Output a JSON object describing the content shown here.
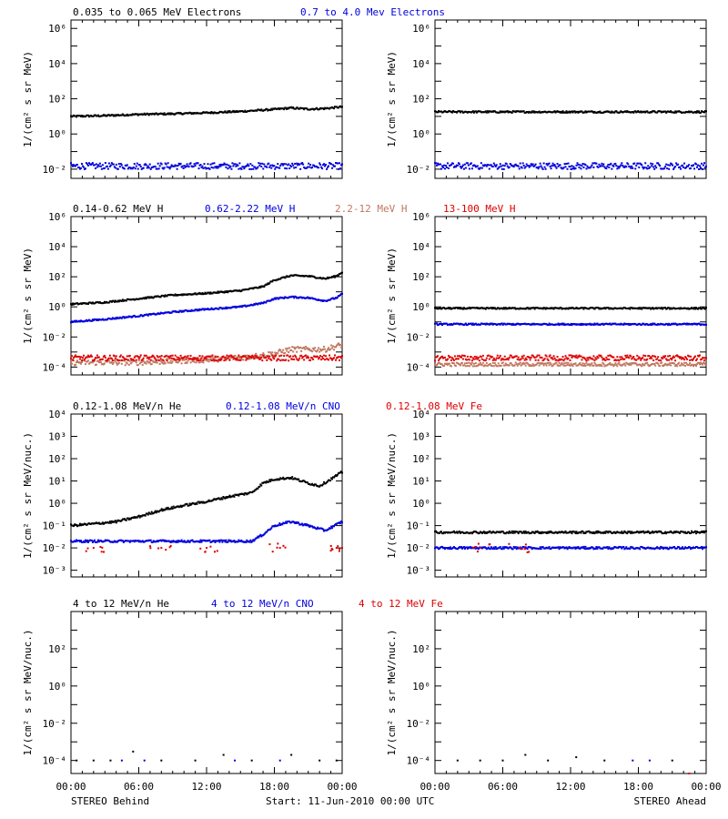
{
  "colors": {
    "axis": "#000000",
    "black_series": "#000000",
    "blue_series": "#0000dd",
    "tan_series": "#c07860",
    "red_series": "#dd0000"
  },
  "footer": {
    "left": "STEREO Behind",
    "center": "Start: 11-Jun-2010 00:00 UTC",
    "right": "STEREO Ahead"
  },
  "chart_data": [
    {
      "type": "scatter",
      "panel": "electrons-behind",
      "ylabel": "1/(cm² s sr MeV)",
      "yscale": "log",
      "ylim": [
        0.003,
        3000000
      ],
      "yticks": [
        "10⁻²",
        "10⁰",
        "10²",
        "10⁴",
        "10⁶"
      ],
      "ytick_values": [
        0.01,
        1,
        100,
        10000,
        1000000
      ],
      "xlim_hours": [
        0,
        24
      ],
      "xticks": [
        "00:00",
        "06:00",
        "12:00",
        "18:00",
        "00:00"
      ],
      "xtick_hours": [
        0,
        6,
        12,
        18,
        24
      ],
      "legend_placement": "top",
      "series": [
        {
          "name": "0.035 to 0.065 MeV Electrons",
          "color": "black",
          "x": [
            0,
            3,
            6,
            9,
            12,
            15,
            18,
            19.5,
            21,
            22.5,
            24
          ],
          "y": [
            10,
            11,
            13,
            14,
            16,
            19,
            25,
            30,
            26,
            28,
            35
          ]
        },
        {
          "name": "0.7 to 4.0 Mev Electrons",
          "color": "blue",
          "x": [
            0,
            6,
            12,
            18,
            24
          ],
          "y": [
            0.015,
            0.015,
            0.015,
            0.015,
            0.015
          ]
        }
      ]
    },
    {
      "type": "scatter",
      "panel": "electrons-ahead",
      "ylabel": "1/(cm² s sr MeV)",
      "yscale": "log",
      "ylim": [
        0.003,
        3000000
      ],
      "yticks": [
        "10⁻²",
        "10⁰",
        "10²",
        "10⁴",
        "10⁶"
      ],
      "ytick_values": [
        0.01,
        1,
        100,
        10000,
        1000000
      ],
      "xlim_hours": [
        0,
        24
      ],
      "xticks": [
        "00:00",
        "06:00",
        "12:00",
        "18:00",
        "00:00"
      ],
      "xtick_hours": [
        0,
        6,
        12,
        18,
        24
      ],
      "series": [
        {
          "name": "",
          "color": "black",
          "x": [
            0,
            6,
            12,
            18,
            24
          ],
          "y": [
            18,
            18,
            18,
            18,
            18
          ]
        },
        {
          "name": "",
          "color": "blue",
          "x": [
            0,
            6,
            12,
            18,
            24
          ],
          "y": [
            0.015,
            0.015,
            0.015,
            0.015,
            0.015
          ]
        }
      ]
    },
    {
      "type": "scatter",
      "panel": "protons-behind",
      "ylabel": "1/(cm² s sr MeV)",
      "yscale": "log",
      "ylim": [
        3e-05,
        1000000
      ],
      "yticks": [
        "10⁻⁴",
        "10⁻²",
        "10⁰",
        "10²",
        "10⁴",
        "10⁶"
      ],
      "ytick_values": [
        0.0001,
        0.01,
        1,
        100,
        10000,
        1000000
      ],
      "xlim_hours": [
        0,
        24
      ],
      "xticks": [
        "00:00",
        "06:00",
        "12:00",
        "18:00",
        "00:00"
      ],
      "xtick_hours": [
        0,
        6,
        12,
        18,
        24
      ],
      "legend_placement": "top",
      "series": [
        {
          "name": "0.14-0.62 MeV H",
          "color": "black",
          "x": [
            0,
            3,
            6,
            9,
            12,
            15,
            17,
            18,
            19.5,
            21,
            22.5,
            23.5,
            24
          ],
          "y": [
            1.5,
            2,
            3.5,
            6,
            8,
            12,
            22,
            60,
            120,
            110,
            75,
            110,
            200
          ]
        },
        {
          "name": "0.62-2.22 MeV H",
          "color": "blue",
          "x": [
            0,
            3,
            6,
            9,
            12,
            15,
            17,
            18,
            19.5,
            21,
            22.5,
            23.5,
            24
          ],
          "y": [
            0.1,
            0.15,
            0.25,
            0.45,
            0.7,
            1,
            1.8,
            3.5,
            4.5,
            4,
            2.5,
            4,
            7
          ]
        },
        {
          "name": "2.2-12 MeV H",
          "color": "tan",
          "x": [
            0,
            6,
            12,
            16,
            18,
            19.5,
            21,
            22.5,
            24
          ],
          "y": [
            0.0002,
            0.0002,
            0.0003,
            0.0005,
            0.0008,
            0.0015,
            0.0015,
            0.0015,
            0.003
          ]
        },
        {
          "name": "13-100 MeV H",
          "color": "red",
          "x": [
            0,
            6,
            12,
            18,
            24
          ],
          "y": [
            0.0004,
            0.0004,
            0.0004,
            0.0004,
            0.0004
          ]
        }
      ]
    },
    {
      "type": "scatter",
      "panel": "protons-ahead",
      "ylabel": "1/(cm² s sr MeV)",
      "yscale": "log",
      "ylim": [
        3e-05,
        1000000
      ],
      "yticks": [
        "10⁻⁴",
        "10⁻²",
        "10⁰",
        "10²",
        "10⁴",
        "10⁶"
      ],
      "ytick_values": [
        0.0001,
        0.01,
        1,
        100,
        10000,
        1000000
      ],
      "xlim_hours": [
        0,
        24
      ],
      "xticks": [
        "00:00",
        "06:00",
        "12:00",
        "18:00",
        "00:00"
      ],
      "xtick_hours": [
        0,
        6,
        12,
        18,
        24
      ],
      "series": [
        {
          "name": "",
          "color": "black",
          "x": [
            0,
            6,
            12,
            18,
            24
          ],
          "y": [
            0.8,
            0.8,
            0.8,
            0.8,
            0.8
          ]
        },
        {
          "name": "",
          "color": "blue",
          "x": [
            0,
            6,
            12,
            18,
            24
          ],
          "y": [
            0.07,
            0.07,
            0.07,
            0.07,
            0.07
          ]
        },
        {
          "name": "",
          "color": "tan",
          "x": [
            0,
            6,
            12,
            18,
            24
          ],
          "y": [
            0.00015,
            0.00015,
            0.00015,
            0.00015,
            0.00015
          ]
        },
        {
          "name": "",
          "color": "red",
          "x": [
            0,
            6,
            12,
            18,
            24
          ],
          "y": [
            0.0004,
            0.0004,
            0.0004,
            0.0004,
            0.0004
          ]
        }
      ]
    },
    {
      "type": "scatter",
      "panel": "heavy-ions-low-behind",
      "ylabel": "1/(cm² s sr MeV/nuc.)",
      "yscale": "log",
      "ylim": [
        0.0005,
        10000
      ],
      "yticks": [
        "10⁻³",
        "10⁻²",
        "10⁻¹",
        "10⁰",
        "10¹",
        "10²",
        "10³",
        "10⁴"
      ],
      "ytick_values": [
        0.001,
        0.01,
        0.1,
        1,
        10,
        100,
        1000,
        10000
      ],
      "xlim_hours": [
        0,
        24
      ],
      "xticks": [
        "00:00",
        "06:00",
        "12:00",
        "18:00",
        "00:00"
      ],
      "xtick_hours": [
        0,
        6,
        12,
        18,
        24
      ],
      "legend_placement": "top",
      "series": [
        {
          "name": "0.12-1.08 MeV/n He",
          "color": "black",
          "x": [
            0,
            2,
            4,
            6,
            8,
            10,
            12,
            14,
            16,
            17,
            18,
            19.5,
            21,
            22,
            23,
            24
          ],
          "y": [
            0.1,
            0.12,
            0.15,
            0.25,
            0.5,
            0.8,
            1.2,
            2,
            3,
            8,
            12,
            14,
            8,
            6,
            12,
            25
          ]
        },
        {
          "name": "0.12-1.08 MeV/n CNO",
          "color": "blue",
          "x": [
            0,
            4,
            8,
            12,
            16,
            17,
            18,
            19.5,
            21,
            22.5,
            24
          ],
          "y": [
            0.02,
            0.02,
            0.02,
            0.02,
            0.02,
            0.04,
            0.1,
            0.15,
            0.1,
            0.06,
            0.15
          ]
        },
        {
          "name": "0.12-1.08 MeV Fe",
          "color": "red",
          "x": [
            2,
            8,
            12,
            18.5,
            23.5,
            24
          ],
          "y": [
            0.01,
            0.01,
            0.01,
            0.01,
            0.01,
            0.01
          ]
        }
      ]
    },
    {
      "type": "scatter",
      "panel": "heavy-ions-low-ahead",
      "ylabel": "1/(cm² s sr MeV/nuc.)",
      "yscale": "log",
      "ylim": [
        0.0005,
        10000
      ],
      "yticks": [
        "10⁻³",
        "10⁻²",
        "10⁻¹",
        "10⁰",
        "10¹",
        "10²",
        "10³",
        "10⁴"
      ],
      "ytick_values": [
        0.001,
        0.01,
        0.1,
        1,
        10,
        100,
        1000,
        10000
      ],
      "xlim_hours": [
        0,
        24
      ],
      "xticks": [
        "00:00",
        "06:00",
        "12:00",
        "18:00",
        "00:00"
      ],
      "xtick_hours": [
        0,
        6,
        12,
        18,
        24
      ],
      "series": [
        {
          "name": "",
          "color": "black",
          "x": [
            0,
            6,
            12,
            18,
            24
          ],
          "y": [
            0.05,
            0.05,
            0.05,
            0.05,
            0.05
          ]
        },
        {
          "name": "",
          "color": "blue",
          "x": [
            0,
            6,
            12,
            18,
            24
          ],
          "y": [
            0.01,
            0.01,
            0.01,
            0.01,
            0.01
          ]
        },
        {
          "name": "",
          "color": "red",
          "x": [
            4,
            7.5
          ],
          "y": [
            0.01,
            0.01
          ]
        }
      ]
    },
    {
      "type": "scatter",
      "panel": "heavy-ions-high-behind",
      "ylabel": "1/(cm² s sr MeV/nuc.)",
      "yscale": "log",
      "ylim": [
        2e-05,
        10000
      ],
      "yticks": [
        "10⁻⁴",
        "10⁻²",
        "10⁰",
        "10²"
      ],
      "ytick_values": [
        0.0001,
        0.01,
        1,
        100
      ],
      "xlim_hours": [
        0,
        24
      ],
      "xticks": [
        "00:00",
        "06:00",
        "12:00",
        "18:00",
        "00:00"
      ],
      "xtick_hours": [
        0,
        6,
        12,
        18,
        24
      ],
      "legend_placement": "top",
      "series": [
        {
          "name": "4 to 12 MeV/n He",
          "color": "black",
          "x": [
            0.5,
            2,
            3.5,
            5.5,
            8,
            11,
            13.5,
            16,
            19.5,
            22,
            23.5
          ],
          "y": [
            0.0001,
            0.0001,
            0.0001,
            0.0003,
            0.0001,
            0.0001,
            0.0002,
            0.0001,
            0.0002,
            0.0001,
            0.0001
          ]
        },
        {
          "name": "4 to 12 MeV/n CNO",
          "color": "blue",
          "x": [
            4.5,
            6.5,
            14.5,
            18.5
          ],
          "y": [
            0.0001,
            0.0001,
            0.0001,
            0.0001
          ]
        },
        {
          "name": "4 to 12 MeV Fe",
          "color": "red",
          "x": [],
          "y": []
        }
      ]
    },
    {
      "type": "scatter",
      "panel": "heavy-ions-high-ahead",
      "ylabel": "1/(cm² s sr MeV/nuc.)",
      "yscale": "log",
      "ylim": [
        2e-05,
        10000
      ],
      "yticks": [
        "10⁻⁴",
        "10⁻²",
        "10⁰",
        "10²"
      ],
      "ytick_values": [
        0.0001,
        0.01,
        1,
        100
      ],
      "xlim_hours": [
        0,
        24
      ],
      "xticks": [
        "00:00",
        "06:00",
        "12:00",
        "18:00",
        "00:00"
      ],
      "xtick_hours": [
        0,
        6,
        12,
        18,
        24
      ],
      "series": [
        {
          "name": "",
          "color": "black",
          "x": [
            2,
            4,
            6,
            8,
            10,
            12.5,
            15,
            21
          ],
          "y": [
            0.0001,
            0.0001,
            0.0001,
            0.0002,
            0.0001,
            0.00015,
            0.0001,
            0.0001
          ]
        },
        {
          "name": "",
          "color": "blue",
          "x": [
            17.5,
            19
          ],
          "y": [
            0.0001,
            0.0001
          ]
        },
        {
          "name": "",
          "color": "red",
          "x": [
            22.5
          ],
          "y": [
            2e-05
          ]
        }
      ]
    }
  ]
}
